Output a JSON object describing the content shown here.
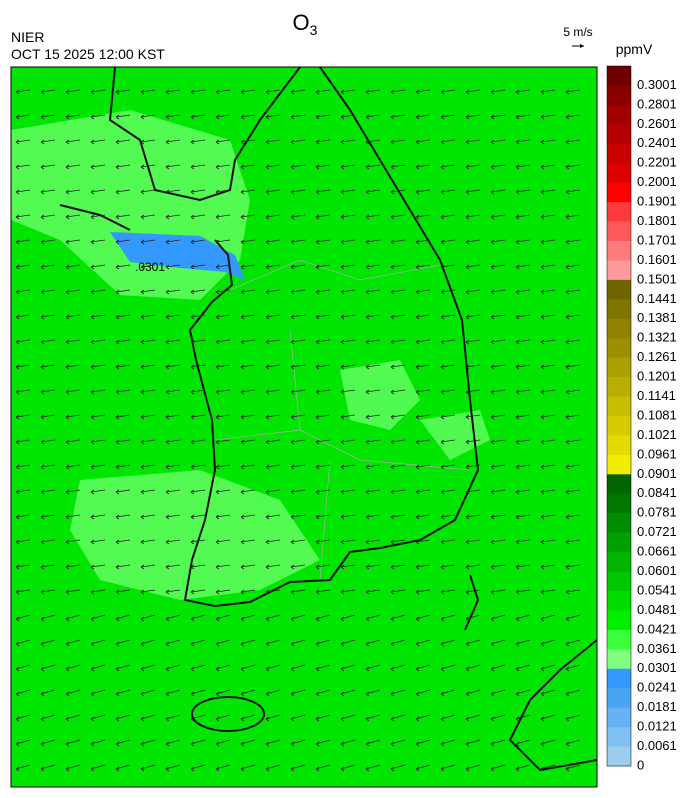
{
  "header": {
    "title": {
      "main": "O",
      "subscript": "3"
    },
    "agency": "NIER",
    "datetime": "OCT 15 2025 12:00 KST",
    "wind_scale": "5 m/s"
  },
  "map": {
    "contour_label": ".0301"
  },
  "colorbar": {
    "unit": "ppmV",
    "labels": [
      "0.3001",
      "0.2801",
      "0.2601",
      "0.2401",
      "0.2201",
      "0.2001",
      "0.1901",
      "0.1801",
      "0.1701",
      "0.1601",
      "0.1501",
      "0.1441",
      "0.1381",
      "0.1321",
      "0.1261",
      "0.1201",
      "0.1141",
      "0.1081",
      "0.1021",
      "0.0961",
      "0.0901",
      "0.0841",
      "0.0781",
      "0.0721",
      "0.0661",
      "0.0601",
      "0.0541",
      "0.0481",
      "0.0421",
      "0.0361",
      "0.0301",
      "0.0241",
      "0.0181",
      "0.0121",
      "0.0061",
      "0"
    ],
    "colors": [
      "#6e0000",
      "#8a0000",
      "#a00000",
      "#b40000",
      "#c80000",
      "#dc0000",
      "#ff0000",
      "#ff3a3a",
      "#ff5a5a",
      "#ff7a7a",
      "#ff9a9a",
      "#6e6400",
      "#7e7400",
      "#8e8200",
      "#9c9000",
      "#aaa000",
      "#b8ae00",
      "#c8be00",
      "#d6cc00",
      "#e4dc00",
      "#f2ec00",
      "#006400",
      "#007800",
      "#008c00",
      "#00a000",
      "#00b400",
      "#00c800",
      "#00dc00",
      "#00f000",
      "#3cff3c",
      "#80ff80",
      "#3399ff",
      "#4aa4f2",
      "#66b2f2",
      "#80c0f0",
      "#9ccdec"
    ]
  }
}
